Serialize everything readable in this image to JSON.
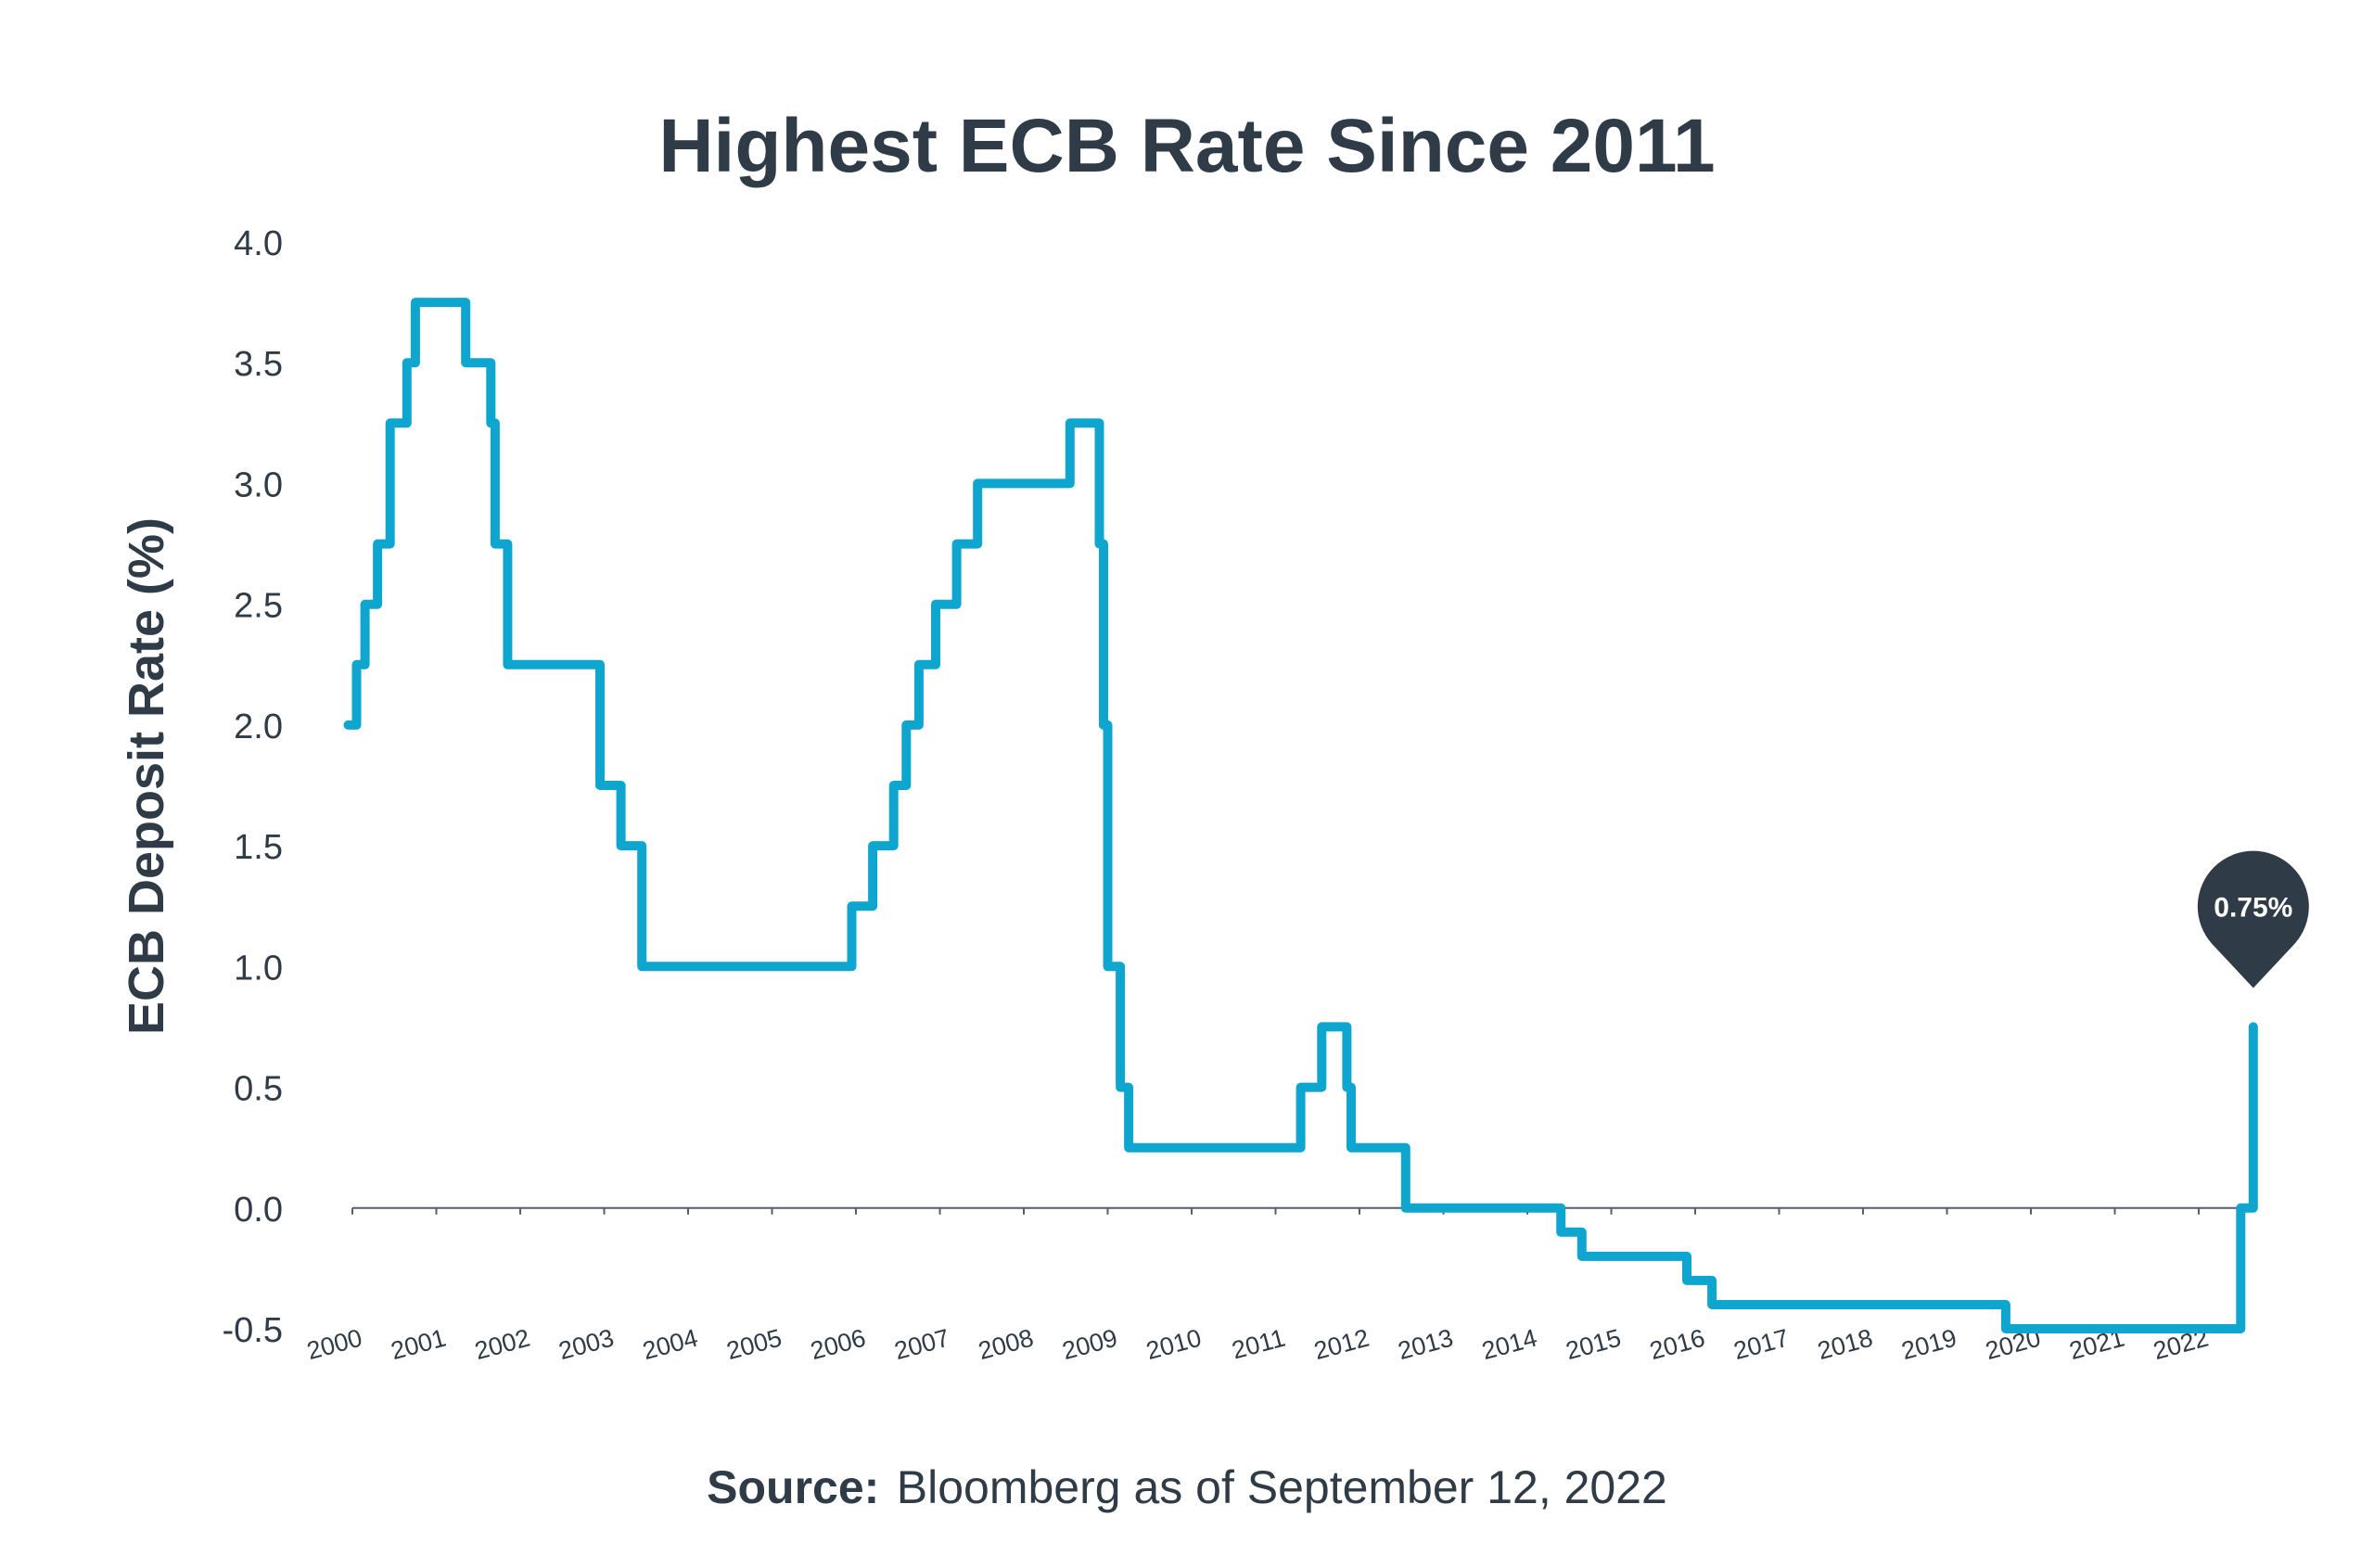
{
  "chart_data": {
    "type": "line",
    "title": "Highest ECB Rate Since 2011",
    "ylabel": "ECB Deposit Rate (%)",
    "xlabel": "",
    "ylim": [
      -0.5,
      4.0
    ],
    "yticks": [
      "4.0",
      "3.5",
      "3.0",
      "2.5",
      "2.0",
      "1.5",
      "1.0",
      "0.5",
      "0.0",
      "-0.5"
    ],
    "xticks": [
      "2000",
      "2001",
      "2002",
      "2003",
      "2004",
      "2005",
      "2006",
      "2007",
      "2008",
      "2009",
      "2010",
      "2011",
      "2012",
      "2013",
      "2014",
      "2015",
      "2016",
      "2017",
      "2018",
      "2019",
      "2020",
      "2021",
      "2022"
    ],
    "grid": false,
    "line_color": "#0ea5cf",
    "series": [
      {
        "x": [
          1999.95,
          2000.05,
          2000.05,
          2000.15,
          2000.15,
          2000.3,
          2000.3,
          2000.45,
          2000.45,
          2000.65,
          2000.65,
          2000.75,
          2000.75,
          2001.35,
          2001.35,
          2001.65,
          2001.65,
          2001.7,
          2001.7,
          2001.85,
          2001.85,
          2002.95,
          2002.95,
          2003.2,
          2003.2,
          2003.45,
          2003.45,
          2005.95,
          2005.95,
          2006.2,
          2006.2,
          2006.45,
          2006.45,
          2006.6,
          2006.6,
          2006.75,
          2006.75,
          2006.95,
          2006.95,
          2007.2,
          2007.2,
          2007.45,
          2007.45,
          2008.55,
          2008.55,
          2008.9,
          2008.9,
          2008.95,
          2008.95,
          2009.0,
          2009.0,
          2009.15,
          2009.15,
          2009.25,
          2009.25,
          2011.3,
          2011.3,
          2011.55,
          2011.55,
          2011.85,
          2011.85,
          2011.9,
          2011.9,
          2012.55,
          2012.55,
          2014.4,
          2014.4,
          2014.65,
          2014.65,
          2015.9,
          2015.9,
          2016.2,
          2016.2,
          2019.7,
          2019.7,
          2022.5,
          2022.5,
          2022.65,
          2022.65
        ],
        "y": [
          2.0,
          2.0,
          2.25,
          2.25,
          2.5,
          2.5,
          2.75,
          2.75,
          3.25,
          3.25,
          3.5,
          3.5,
          3.75,
          3.75,
          3.5,
          3.5,
          3.25,
          3.25,
          2.75,
          2.75,
          2.25,
          2.25,
          1.75,
          1.75,
          1.5,
          1.5,
          1.0,
          1.0,
          1.25,
          1.25,
          1.5,
          1.5,
          1.75,
          1.75,
          2.0,
          2.0,
          2.25,
          2.25,
          2.5,
          2.5,
          2.75,
          2.75,
          3.0,
          3.0,
          3.25,
          3.25,
          2.75,
          2.75,
          2.0,
          2.0,
          1.0,
          1.0,
          0.5,
          0.5,
          0.25,
          0.25,
          0.5,
          0.5,
          0.75,
          0.75,
          0.5,
          0.5,
          0.25,
          0.25,
          0.0,
          0.0,
          -0.1,
          -0.1,
          -0.2,
          -0.2,
          -0.3,
          -0.3,
          -0.4,
          -0.4,
          -0.5,
          -0.5,
          0.0,
          0.0,
          0.75
        ]
      }
    ],
    "annotations": [
      {
        "label": "0.75%",
        "x": 2022.65,
        "y": 0.75,
        "color": "#2f3b46"
      }
    ],
    "source_label": "Source:",
    "source_text": "Bloomberg as of September 12, 2022"
  }
}
